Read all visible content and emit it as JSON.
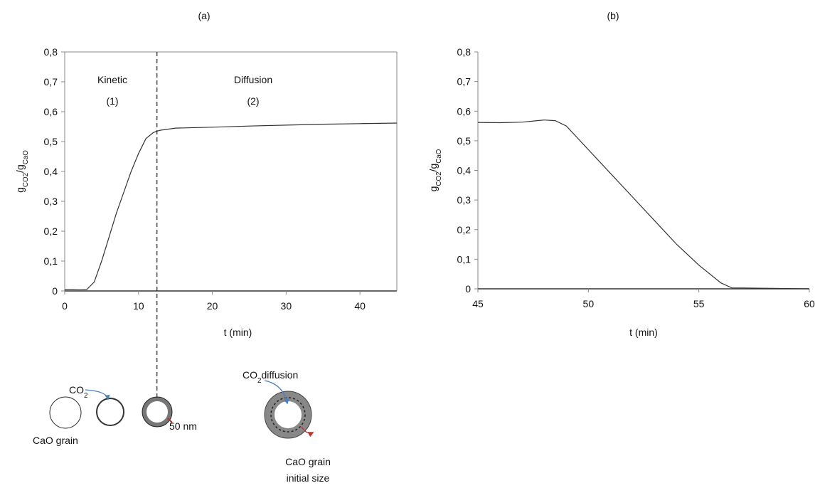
{
  "chart_data": [
    {
      "type": "line",
      "title": "(a)",
      "xlabel": "t (min)",
      "ylabel": [
        {
          "text": "g"
        },
        {
          "text": "CO2",
          "sub": true
        },
        {
          "text": "/g"
        },
        {
          "text": "CaO",
          "sub": true
        }
      ],
      "xlim": [
        0,
        45
      ],
      "xticks": [
        0,
        10,
        20,
        30,
        40
      ],
      "ylim": [
        0,
        0.8
      ],
      "yticks": [
        0,
        {
          "value": 0.1,
          "label": "0,1"
        },
        {
          "value": 0.2,
          "label": "0,2"
        },
        {
          "value": 0.3,
          "label": "0,3"
        },
        {
          "value": 0.4,
          "label": "0,4"
        },
        {
          "value": 0.5,
          "label": "0,5"
        },
        {
          "value": 0.6,
          "label": "0,6"
        },
        {
          "value": 0.7,
          "label": "0,7"
        },
        {
          "value": 0.8,
          "label": "0,8"
        }
      ],
      "frame": true,
      "color": "#333333",
      "x": [
        0,
        1,
        2,
        3,
        4,
        5,
        6,
        7,
        8,
        9,
        10,
        11,
        12,
        12.5,
        13,
        15,
        20,
        25,
        30,
        35,
        40,
        45
      ],
      "values": [
        0.005,
        0.005,
        0.004,
        0.005,
        0.03,
        0.1,
        0.18,
        0.26,
        0.33,
        0.4,
        0.46,
        0.51,
        0.53,
        0.535,
        0.538,
        0.545,
        0.548,
        0.552,
        0.555,
        0.558,
        0.56,
        0.562
      ],
      "divider_x": 12.5,
      "annotations": [
        "Kinetic",
        "(1)",
        "Diffusion",
        "(2)"
      ]
    },
    {
      "type": "line",
      "title": "(b)",
      "xlabel": "t (min)",
      "ylabel": [
        {
          "text": "g"
        },
        {
          "text": "CO2",
          "sub": true
        },
        {
          "text": "/g"
        },
        {
          "text": "CaO",
          "sub": true
        }
      ],
      "xlim": [
        45,
        60
      ],
      "xticks": [
        45,
        50,
        55,
        60
      ],
      "ylim": [
        0,
        0.8
      ],
      "yticks": [
        0,
        {
          "value": 0.1,
          "label": "0,1"
        },
        {
          "value": 0.2,
          "label": "0,2"
        },
        {
          "value": 0.3,
          "label": "0,3"
        },
        {
          "value": 0.4,
          "label": "0,4"
        },
        {
          "value": 0.5,
          "label": "0,5"
        },
        {
          "value": 0.6,
          "label": "0,6"
        },
        {
          "value": 0.7,
          "label": "0,7"
        },
        {
          "value": 0.8,
          "label": "0,8"
        }
      ],
      "frame": false,
      "color": "#333333",
      "x": [
        45,
        46,
        47,
        48,
        48.5,
        49,
        50,
        51,
        52,
        53,
        54,
        55,
        56,
        56.5,
        57,
        58,
        59,
        60
      ],
      "values": [
        0.562,
        0.561,
        0.563,
        0.57,
        0.568,
        0.55,
        0.47,
        0.39,
        0.31,
        0.23,
        0.15,
        0.08,
        0.02,
        0.003,
        0.003,
        0.002,
        0.001,
        0
      ]
    }
  ],
  "diagram": {
    "co2": [
      {
        "text": "CO"
      },
      {
        "text": "2",
        "sub": true
      }
    ],
    "grain": "CaO grain",
    "thickness": "50 nm",
    "co2_diffusion": [
      {
        "text": "CO"
      },
      {
        "text": "2",
        "sub": true
      },
      {
        "text": "diffusion"
      }
    ],
    "initial": [
      "CaO grain",
      "initial size"
    ]
  }
}
